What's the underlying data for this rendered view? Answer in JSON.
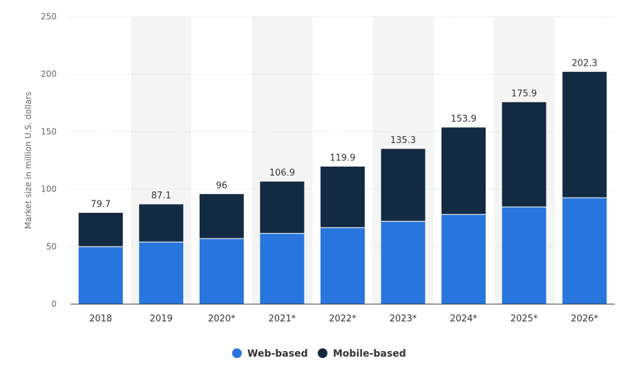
{
  "chart_data": {
    "type": "bar",
    "stacked": true,
    "categories": [
      "2018",
      "2019",
      "2020*",
      "2021*",
      "2022*",
      "2023*",
      "2024*",
      "2025*",
      "2026*"
    ],
    "series": [
      {
        "name": "Web-based",
        "color": "#2876dd",
        "values": [
          50,
          54,
          57,
          61.5,
          66.5,
          72,
          78,
          84.5,
          92.5
        ]
      },
      {
        "name": "Mobile-based",
        "color": "#132a43",
        "values": [
          29.7,
          33.1,
          39,
          45.4,
          53.4,
          63.3,
          75.9,
          91.4,
          109.8
        ]
      }
    ],
    "totals": [
      "79.7",
      "87.1",
      "96",
      "106.9",
      "119.9",
      "135.3",
      "153.9",
      "175.9",
      "202.3"
    ],
    "title": "",
    "xlabel": "",
    "ylabel": "Market size in million U.S. dollars",
    "ylim": [
      0,
      250
    ],
    "yticks": [
      0,
      50,
      100,
      150,
      200,
      250
    ],
    "grid": true,
    "legend_position": "bottom",
    "alt_band_color": "#f4f4f4",
    "grid_color": "#c8c8c8"
  }
}
